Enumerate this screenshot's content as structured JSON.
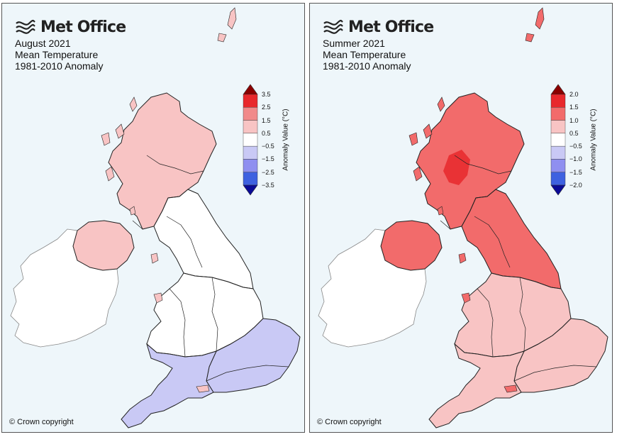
{
  "panels": [
    {
      "brand": "Met Office",
      "title_lines": [
        "August 2021",
        "Mean Temperature",
        "1981-2010 Anomaly"
      ],
      "legend_title": "Anomaly Value (°C)",
      "legend_ticks": [
        "3.5",
        "2.5",
        "1.5",
        "0.5",
        "−0.5",
        "−1.5",
        "−2.5",
        "−3.5"
      ],
      "legend_colors": [
        "#8b0000",
        "#e8282c",
        "#f18a8a",
        "#f8c4c4",
        "#ffffff",
        "#c9c9f5",
        "#8f8ff0",
        "#3e61e0",
        "#0a0a96"
      ],
      "copyright": "© Crown copyright",
      "anomaly_zones": {
        "scotland": 3,
        "northern_ireland": 3,
        "northern_england": 4,
        "wales_midlands": 4,
        "south_east": 5,
        "south_west": 5
      }
    },
    {
      "brand": "Met Office",
      "title_lines": [
        "Summer 2021",
        "Mean Temperature",
        "1981-2010 Anomaly"
      ],
      "legend_title": "Anomaly Value (°C)",
      "legend_ticks": [
        "2.0",
        "1.5",
        "1.0",
        "0.5",
        "−0.5",
        "−1.0",
        "−1.5",
        "−2.0"
      ],
      "legend_colors": [
        "#8b0000",
        "#e8282c",
        "#f26b6b",
        "#f8c4c4",
        "#ffffff",
        "#c9c9f5",
        "#8f8ff0",
        "#3e61e0",
        "#0a0a96"
      ],
      "copyright": "© Crown copyright",
      "anomaly_zones": {
        "scotland": 2,
        "northern_ireland": 2,
        "northern_england": 2,
        "wales_midlands": 3,
        "south_east": 3,
        "south_west": 3
      }
    }
  ],
  "colors": {
    "background": "#eef6fa",
    "ireland": "#ffffff",
    "border": "#222222",
    "scotland_hotspot": "#e8282c"
  }
}
